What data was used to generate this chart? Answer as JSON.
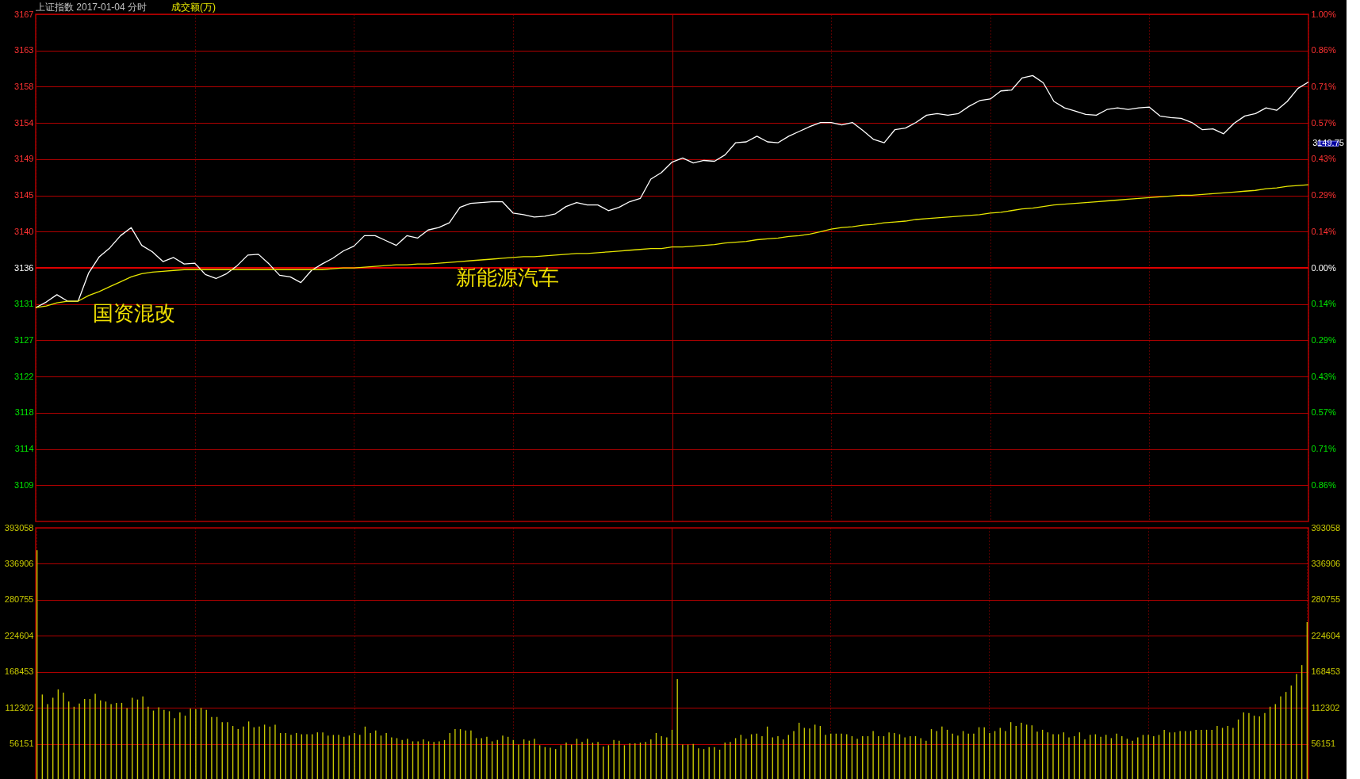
{
  "chart_data": [
    {
      "type": "line",
      "title": "上证指数  2017-01-04 分时",
      "subtitle": "成交额(万)",
      "categories": [
        null,
        null,
        null,
        null,
        null,
        null,
        null,
        null,
        null,
        null,
        null,
        null,
        null,
        null,
        null,
        null,
        null,
        null,
        null,
        null,
        null,
        null,
        null,
        null,
        null,
        null,
        null,
        null,
        null,
        null,
        null,
        null,
        null,
        null,
        null,
        null,
        null,
        null,
        null,
        null,
        null,
        null,
        null,
        null,
        null,
        null,
        null,
        null,
        null,
        null,
        null,
        null,
        null,
        null,
        null,
        null,
        null,
        null,
        null,
        null,
        null,
        null,
        null,
        null,
        null,
        null,
        null,
        null,
        null,
        null,
        null,
        null,
        null,
        null,
        null,
        null,
        null,
        null,
        null,
        null,
        null,
        null,
        null,
        null,
        null,
        null,
        null,
        null,
        null,
        null,
        null,
        null,
        null,
        null,
        null,
        null,
        null,
        null,
        null,
        null,
        null,
        null,
        null,
        null,
        null,
        null,
        null,
        null,
        null,
        null,
        null,
        null,
        null,
        null,
        null,
        null,
        null,
        null,
        null,
        null,
        null
      ],
      "series": [
        {
          "color": "#ffffff",
          "values": [
            3131.0,
            3131.7,
            3132.6,
            3131.8,
            3131.8,
            3135.3,
            3137.3,
            3138.4,
            3139.9,
            3140.9,
            3138.7,
            3137.9,
            3136.7,
            3137.2,
            3136.4,
            3136.5,
            3135.1,
            3134.6,
            3135.2,
            3136.2,
            3137.5,
            3137.6,
            3136.4,
            3135.0,
            3134.8,
            3134.1,
            3135.6,
            3136.4,
            3137.1,
            3138.0,
            3138.6,
            3139.9,
            3139.9,
            3139.3,
            3138.7,
            3139.9,
            3139.6,
            3140.6,
            3140.9,
            3141.5,
            3143.4,
            3143.9,
            3144.0,
            3144.1,
            3144.1,
            3142.7,
            3142.5,
            3142.2,
            3142.3,
            3142.6,
            3143.5,
            3144.0,
            3143.7,
            3143.7,
            3143.0,
            3143.4,
            3144.1,
            3144.5,
            3146.9,
            3147.7,
            3149.0,
            3149.5,
            3148.9,
            3149.2,
            3149.1,
            3149.9,
            3151.4,
            3151.5,
            3152.2,
            3151.5,
            3151.4,
            3152.2,
            3152.8,
            3153.4,
            3153.9,
            3153.9,
            3153.6,
            3153.9,
            3152.9,
            3151.8,
            3151.4,
            3153.0,
            3153.2,
            3153.9,
            3154.8,
            3155.0,
            3154.8,
            3155.0,
            3155.9,
            3156.6,
            3156.8,
            3157.8,
            3157.9,
            3159.4,
            3159.7,
            3158.8,
            3156.5,
            3155.7,
            3155.3,
            3154.9,
            3154.8,
            3155.5,
            3155.7,
            3155.5,
            3155.7,
            3155.8,
            3154.7,
            3154.5,
            3154.4,
            3153.9,
            3153.0,
            3153.1,
            3152.5,
            3153.8,
            3154.7,
            3155.0,
            3155.7,
            3155.4,
            3156.5,
            3158.1,
            3158.9
          ]
        },
        {
          "color": "#e6e600",
          "values": [
            3131.0,
            3131.2,
            3131.6,
            3131.8,
            3131.8,
            3132.5,
            3133.0,
            3133.6,
            3134.2,
            3134.8,
            3135.2,
            3135.4,
            3135.5,
            3135.6,
            3135.7,
            3135.7,
            3135.7,
            3135.7,
            3135.7,
            3135.7,
            3135.7,
            3135.7,
            3135.7,
            3135.7,
            3135.7,
            3135.7,
            3135.7,
            3135.7,
            3135.8,
            3135.9,
            3135.9,
            3136.0,
            3136.1,
            3136.2,
            3136.3,
            3136.3,
            3136.4,
            3136.4,
            3136.5,
            3136.6,
            3136.7,
            3136.8,
            3136.9,
            3137.0,
            3137.1,
            3137.2,
            3137.3,
            3137.3,
            3137.4,
            3137.5,
            3137.6,
            3137.7,
            3137.7,
            3137.8,
            3137.9,
            3138.0,
            3138.1,
            3138.2,
            3138.3,
            3138.3,
            3138.5,
            3138.5,
            3138.6,
            3138.7,
            3138.8,
            3139.0,
            3139.1,
            3139.2,
            3139.4,
            3139.5,
            3139.6,
            3139.8,
            3139.9,
            3140.1,
            3140.4,
            3140.7,
            3140.9,
            3141.0,
            3141.2,
            3141.3,
            3141.5,
            3141.6,
            3141.7,
            3141.9,
            3142.0,
            3142.1,
            3142.2,
            3142.3,
            3142.4,
            3142.5,
            3142.7,
            3142.8,
            3143.0,
            3143.2,
            3143.3,
            3143.5,
            3143.7,
            3143.8,
            3143.9,
            3144.0,
            3144.1,
            3144.2,
            3144.3,
            3144.4,
            3144.5,
            3144.6,
            3144.7,
            3144.8,
            3144.9,
            3144.9,
            3145.0,
            3145.1,
            3145.2,
            3145.3,
            3145.4,
            3145.5,
            3145.7,
            3145.8,
            3146.0,
            3146.1,
            3146.2
          ]
        }
      ],
      "ylim": [
        3104.56,
        3167.28
      ],
      "yticks": [
        {
          "value": 3109.04,
          "label": "3109"
        },
        {
          "value": 3113.52,
          "label": "3114"
        },
        {
          "value": 3118.0,
          "label": "3118"
        },
        {
          "value": 3122.48,
          "label": "3122"
        },
        {
          "value": 3126.96,
          "label": "3127"
        },
        {
          "value": 3131.44,
          "label": "3131"
        },
        {
          "value": 3135.92,
          "label": "3136"
        },
        {
          "value": 3140.4,
          "label": "3140"
        },
        {
          "value": 3144.88,
          "label": "3145"
        },
        {
          "value": 3149.36,
          "label": "3149"
        },
        {
          "value": 3153.84,
          "label": "3154"
        },
        {
          "value": 3158.32,
          "label": "3158"
        },
        {
          "value": 3162.8,
          "label": "3163"
        },
        {
          "value": 3167.28,
          "label": "3167"
        }
      ],
      "y2lim": [
        -1.0,
        1.0
      ],
      "y2ticks": [
        {
          "value": -0.857,
          "label": "0.86%"
        },
        {
          "value": -0.714,
          "label": "0.71%"
        },
        {
          "value": -0.571,
          "label": "0.57%"
        },
        {
          "value": -0.429,
          "label": "0.43%"
        },
        {
          "value": -0.286,
          "label": "0.29%"
        },
        {
          "value": -0.143,
          "label": "0.14%"
        },
        {
          "value": 0.0,
          "label": "0.00%"
        },
        {
          "value": 0.143,
          "label": "0.14%"
        },
        {
          "value": 0.286,
          "label": "0.29%"
        },
        {
          "value": 0.429,
          "label": "0.43%"
        },
        {
          "value": 0.571,
          "label": "0.57%"
        },
        {
          "value": 0.714,
          "label": "0.71%"
        },
        {
          "value": 0.857,
          "label": "0.86%"
        },
        {
          "value": 1.0,
          "label": "1.00%"
        }
      ],
      "grid": true,
      "ref_lines": [
        {
          "axis": "y",
          "value": 3135.92,
          "color": "#e00000"
        }
      ],
      "annotations": [
        "国资混改",
        "新能源汽车",
        "3149.75"
      ]
    },
    {
      "type": "bar",
      "categories": [
        null,
        null,
        null,
        null,
        null,
        null,
        null,
        null,
        null,
        null,
        null,
        null,
        null,
        null,
        null,
        null,
        null,
        null,
        null,
        null,
        null,
        null,
        null,
        null,
        null,
        null,
        null,
        null,
        null,
        null,
        null,
        null,
        null,
        null,
        null,
        null,
        null,
        null,
        null,
        null,
        null,
        null,
        null,
        null,
        null,
        null,
        null,
        null,
        null,
        null,
        null,
        null,
        null,
        null,
        null,
        null,
        null,
        null,
        null,
        null,
        null,
        null,
        null,
        null,
        null,
        null,
        null,
        null,
        null,
        null,
        null,
        null,
        null,
        null,
        null,
        null,
        null,
        null,
        null,
        null,
        null,
        null,
        null,
        null,
        null,
        null,
        null,
        null,
        null,
        null,
        null,
        null,
        null,
        null,
        null,
        null,
        null,
        null,
        null,
        null,
        null,
        null,
        null,
        null,
        null,
        null,
        null,
        null,
        null,
        null,
        null,
        null,
        null,
        null,
        null,
        null,
        null,
        null,
        null,
        null,
        null,
        null,
        null,
        null,
        null,
        null,
        null,
        null,
        null,
        null,
        null,
        null,
        null,
        null,
        null,
        null,
        null,
        null,
        null,
        null,
        null,
        null,
        null,
        null,
        null,
        null,
        null,
        null,
        null,
        null,
        null,
        null,
        null,
        null,
        null,
        null,
        null,
        null,
        null,
        null,
        null,
        null,
        null,
        null,
        null,
        null,
        null,
        null,
        null,
        null,
        null,
        null,
        null,
        null,
        null,
        null,
        null,
        null,
        null,
        null,
        null,
        null,
        null,
        null,
        null,
        null,
        null,
        null,
        null,
        null,
        null,
        null,
        null,
        null,
        null,
        null,
        null,
        null,
        null,
        null,
        null,
        null,
        null,
        null,
        null,
        null,
        null,
        null,
        null,
        null,
        null,
        null,
        null,
        null,
        null,
        null,
        null,
        null,
        null,
        null,
        null,
        null,
        null,
        null,
        null,
        null,
        null,
        null,
        null,
        null,
        null,
        null,
        null,
        null,
        null,
        null,
        null,
        null,
        null,
        null,
        null
      ],
      "series": [
        {
          "color": "#c8c800",
          "values": [
            358000,
            133000,
            118000,
            128000,
            141000,
            136000,
            122000,
            114000,
            119000,
            126000,
            126000,
            134000,
            124000,
            122000,
            118000,
            120000,
            120000,
            112000,
            128000,
            125000,
            130000,
            114000,
            108000,
            113000,
            109000,
            107000,
            96000,
            105000,
            100000,
            111000,
            110000,
            112000,
            109000,
            98000,
            98000,
            90000,
            90000,
            84000,
            79000,
            83000,
            91000,
            82000,
            83000,
            86000,
            83000,
            86000,
            73000,
            73000,
            70000,
            73000,
            71000,
            71000,
            71000,
            74000,
            74000,
            69000,
            70000,
            70000,
            67000,
            69000,
            73000,
            70000,
            83000,
            73000,
            77000,
            69000,
            73000,
            66000,
            65000,
            62000,
            64000,
            60000,
            60000,
            63000,
            60000,
            59000,
            60000,
            62000,
            73000,
            79000,
            79000,
            77000,
            77000,
            65000,
            65000,
            67000,
            60000,
            62000,
            69000,
            67000,
            62000,
            55000,
            63000,
            61000,
            64000,
            54000,
            51000,
            50000,
            48000,
            54000,
            58000,
            55000,
            64000,
            59000,
            64000,
            58000,
            59000,
            52000,
            54000,
            62000,
            61000,
            54000,
            57000,
            57000,
            58000,
            59000,
            63000,
            73000,
            68000,
            66000,
            78000,
            157000,
            55000,
            55000,
            56000,
            49000,
            48000,
            51000,
            51000,
            47000,
            58000,
            59000,
            65000,
            70000,
            64000,
            71000,
            72000,
            68000,
            83000,
            66000,
            68000,
            63000,
            70000,
            76000,
            89000,
            81000,
            80000,
            86000,
            84000,
            70000,
            72000,
            72000,
            72000,
            71000,
            68000,
            64000,
            68000,
            68000,
            76000,
            68000,
            68000,
            74000,
            73000,
            71000,
            66000,
            68000,
            68000,
            65000,
            61000,
            79000,
            76000,
            83000,
            78000,
            72000,
            69000,
            76000,
            72000,
            72000,
            82000,
            82000,
            73000,
            76000,
            81000,
            76000,
            90000,
            84000,
            89000,
            86000,
            85000,
            75000,
            78000,
            74000,
            71000,
            71000,
            74000,
            66000,
            68000,
            74000,
            63000,
            70000,
            71000,
            67000,
            70000,
            65000,
            72000,
            68000,
            64000,
            61000,
            66000,
            70000,
            70000,
            68000,
            70000,
            78000,
            74000,
            74000,
            76000,
            76000,
            76000,
            78000,
            78000,
            78000,
            78000,
            84000,
            81000,
            84000,
            81000,
            94000,
            105000,
            104000,
            100000,
            99000,
            104000,
            114000,
            118000,
            130000,
            137000,
            147000,
            165000,
            179000,
            246000
          ]
        }
      ],
      "ylim": [
        0,
        393058
      ],
      "yticks": [
        56151,
        112302,
        168453,
        224604,
        280755,
        336906,
        393058
      ],
      "y2lim": [
        0,
        393058
      ],
      "y2ticks": [
        56151,
        112302,
        168453,
        224604,
        280755,
        336906,
        393058
      ],
      "grid": true
    }
  ]
}
